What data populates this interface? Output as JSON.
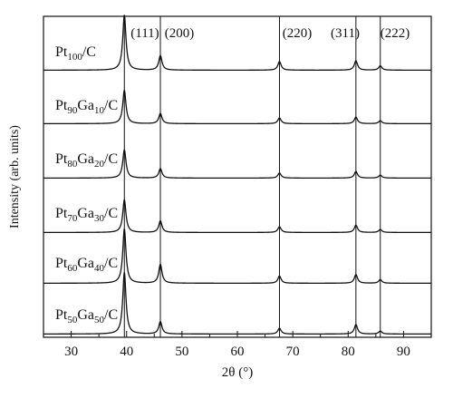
{
  "chart_data": {
    "type": "line",
    "xlabel": "2θ (°)",
    "ylabel": "Intensity (arb. units)",
    "xlim": [
      25,
      95
    ],
    "x_ticks": [
      30,
      40,
      50,
      60,
      70,
      80,
      90
    ],
    "reference_lines": [
      {
        "x": 39.6,
        "label": "(111)"
      },
      {
        "x": 46.1,
        "label": "(200)"
      },
      {
        "x": 67.6,
        "label": "(220)"
      },
      {
        "x": 81.4,
        "label": "(311)"
      },
      {
        "x": 85.8,
        "label": "(222)"
      }
    ],
    "series": [
      {
        "name": "Pt100/C",
        "label_parts": [
          [
            "Pt",
            ""
          ],
          [
            "100",
            "sub"
          ],
          [
            "/C",
            ""
          ]
        ],
        "baseline": 0.2,
        "peaks": [
          [
            39.6,
            7.6
          ],
          [
            46.1,
            2.0
          ],
          [
            67.6,
            1.2
          ],
          [
            81.4,
            1.3
          ],
          [
            85.8,
            0.6
          ]
        ]
      },
      {
        "name": "Pt90Ga10/C",
        "label_parts": [
          [
            "Pt",
            ""
          ],
          [
            "90",
            "sub"
          ],
          [
            "Ga",
            ""
          ],
          [
            "10",
            "sub"
          ],
          [
            "/C",
            ""
          ]
        ],
        "baseline": 0.2,
        "peaks": [
          [
            39.6,
            4.6
          ],
          [
            46.1,
            1.4
          ],
          [
            67.6,
            0.8
          ],
          [
            81.4,
            0.9
          ],
          [
            85.8,
            0.4
          ]
        ]
      },
      {
        "name": "Pt80Ga20/C",
        "label_parts": [
          [
            "Pt",
            ""
          ],
          [
            "80",
            "sub"
          ],
          [
            "Ga",
            ""
          ],
          [
            "20",
            "sub"
          ],
          [
            "/C",
            ""
          ]
        ],
        "baseline": 0.2,
        "peaks": [
          [
            39.6,
            3.9
          ],
          [
            46.1,
            1.3
          ],
          [
            67.6,
            0.7
          ],
          [
            81.4,
            0.9
          ],
          [
            85.8,
            0.4
          ]
        ]
      },
      {
        "name": "Pt70Ga30/C",
        "label_parts": [
          [
            "Pt",
            ""
          ],
          [
            "70",
            "sub"
          ],
          [
            "Ga",
            ""
          ],
          [
            "30",
            "sub"
          ],
          [
            "/C",
            ""
          ]
        ],
        "baseline": 0.2,
        "peaks": [
          [
            39.6,
            4.5
          ],
          [
            46.1,
            1.6
          ],
          [
            67.6,
            0.8
          ],
          [
            81.4,
            1.0
          ],
          [
            85.8,
            0.4
          ]
        ]
      },
      {
        "name": "Pt60Ga40/C",
        "label_parts": [
          [
            "Pt",
            ""
          ],
          [
            "60",
            "sub"
          ],
          [
            "Ga",
            ""
          ],
          [
            "40",
            "sub"
          ],
          [
            "/C",
            ""
          ]
        ],
        "baseline": 0.2,
        "peaks": [
          [
            39.6,
            7.5
          ],
          [
            46.1,
            2.6
          ],
          [
            67.6,
            1.0
          ],
          [
            81.4,
            1.2
          ],
          [
            85.8,
            0.5
          ]
        ]
      },
      {
        "name": "Pt50Ga50/C",
        "label_parts": [
          [
            "Pt",
            ""
          ],
          [
            "50",
            "sub"
          ],
          [
            "Ga",
            ""
          ],
          [
            "50",
            "sub"
          ],
          [
            "/C",
            ""
          ]
        ],
        "baseline": 0.2,
        "peaks": [
          [
            39.6,
            8.5
          ],
          [
            46.1,
            1.7
          ],
          [
            67.6,
            0.8
          ],
          [
            81.4,
            1.3
          ],
          [
            85.8,
            0.4
          ]
        ]
      }
    ],
    "grid": false,
    "legend": "none"
  }
}
